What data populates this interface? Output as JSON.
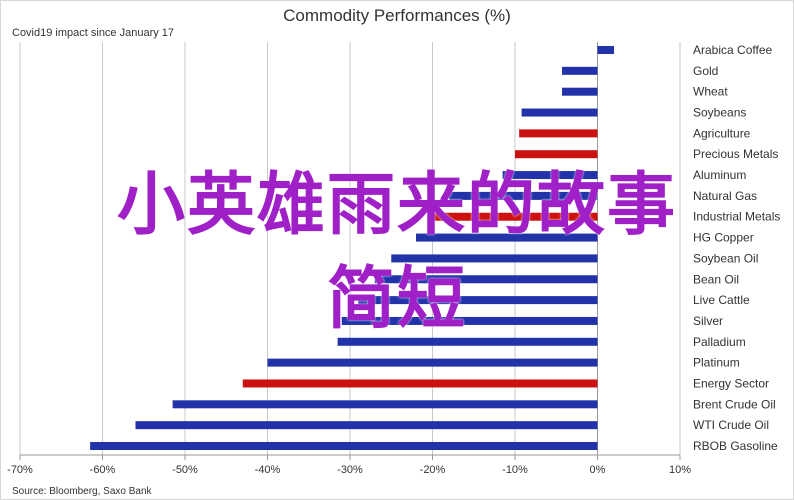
{
  "chart_data": {
    "type": "bar",
    "orientation": "horizontal",
    "title": "Commodity Performances (%)",
    "subtitle": "Covid19 impact since January 17",
    "source": "Source: Bloomberg, Saxo Bank",
    "xlim": [
      -70,
      10
    ],
    "x_ticks": [
      -70,
      -60,
      -50,
      -40,
      -30,
      -20,
      -10,
      0,
      10
    ],
    "x_tick_labels": [
      "-70%",
      "-60%",
      "-50%",
      "-40%",
      "-30%",
      "-20%",
      "-10%",
      "0%",
      "10%"
    ],
    "grid": "vertical",
    "legend": "none",
    "categories": [
      "Arabica Coffee",
      "Gold",
      "Wheat",
      "Soybeans",
      "Agriculture",
      "Precious Metals",
      "Aluminum",
      "Natural Gas",
      "Industrial Metals",
      "HG Copper",
      "Soybean Oil",
      "Bean Oil",
      "Live Cattle",
      "Silver",
      "Palladium",
      "Platinum",
      "Energy Sector",
      "Brent Crude Oil",
      "WTI Crude Oil",
      "RBOB Gasoline"
    ],
    "values": [
      2,
      -4.3,
      -4.3,
      -9.2,
      -9.5,
      -10,
      -11.5,
      -18,
      -20,
      -22,
      -25,
      -27,
      -29,
      -31,
      -31.5,
      -40,
      -43,
      -51.5,
      -56,
      -61.5
    ],
    "bar_colors": [
      "#2233aa",
      "#2233aa",
      "#2233aa",
      "#2233aa",
      "#cc1111",
      "#cc1111",
      "#2233aa",
      "#2233aa",
      "#cc1111",
      "#2233aa",
      "#2233aa",
      "#2233aa",
      "#2233aa",
      "#2233aa",
      "#2233aa",
      "#2233aa",
      "#cc1111",
      "#2233aa",
      "#2233aa",
      "#2233aa"
    ]
  },
  "overlay": {
    "line1": "小英雄雨来的故事",
    "line2": "简短",
    "color": "#a020c8"
  },
  "colors": {
    "blue": "#2233aa",
    "red": "#cc1111",
    "grid": "#c8c8c8",
    "text": "#333333"
  }
}
